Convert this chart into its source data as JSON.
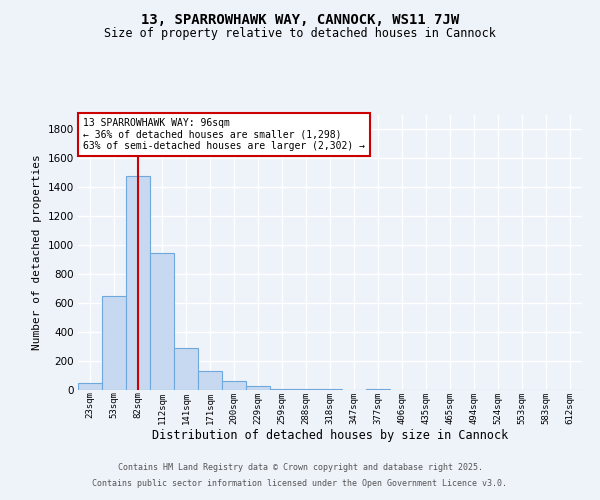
{
  "title": "13, SPARROWHAWK WAY, CANNOCK, WS11 7JW",
  "subtitle": "Size of property relative to detached houses in Cannock",
  "xlabel": "Distribution of detached houses by size in Cannock",
  "ylabel": "Number of detached properties",
  "bar_labels": [
    "23sqm",
    "53sqm",
    "82sqm",
    "112sqm",
    "141sqm",
    "171sqm",
    "200sqm",
    "229sqm",
    "259sqm",
    "288sqm",
    "318sqm",
    "347sqm",
    "377sqm",
    "406sqm",
    "435sqm",
    "465sqm",
    "494sqm",
    "524sqm",
    "553sqm",
    "583sqm",
    "612sqm"
  ],
  "bar_values": [
    50,
    650,
    1480,
    950,
    290,
    130,
    65,
    25,
    10,
    5,
    5,
    3,
    5,
    3,
    1,
    1,
    1,
    0,
    0,
    0,
    0
  ],
  "bar_color": "#c6d9f0",
  "bar_edge_color": "#6fa8dc",
  "red_line_x": 2.0,
  "annotation_title": "13 SPARROWHAWK WAY: 96sqm",
  "annotation_line1": "← 36% of detached houses are smaller (1,298)",
  "annotation_line2": "63% of semi-detached houses are larger (2,302) →",
  "annotation_box_color": "#ffffff",
  "annotation_box_edge": "#cc0000",
  "red_line_color": "#cc0000",
  "ylim": [
    0,
    1900
  ],
  "yticks": [
    0,
    200,
    400,
    600,
    800,
    1000,
    1200,
    1400,
    1600,
    1800
  ],
  "background_color": "#eef2f9",
  "grid_color": "#ffffff",
  "footer_line1": "Contains HM Land Registry data © Crown copyright and database right 2025.",
  "footer_line2": "Contains public sector information licensed under the Open Government Licence v3.0."
}
